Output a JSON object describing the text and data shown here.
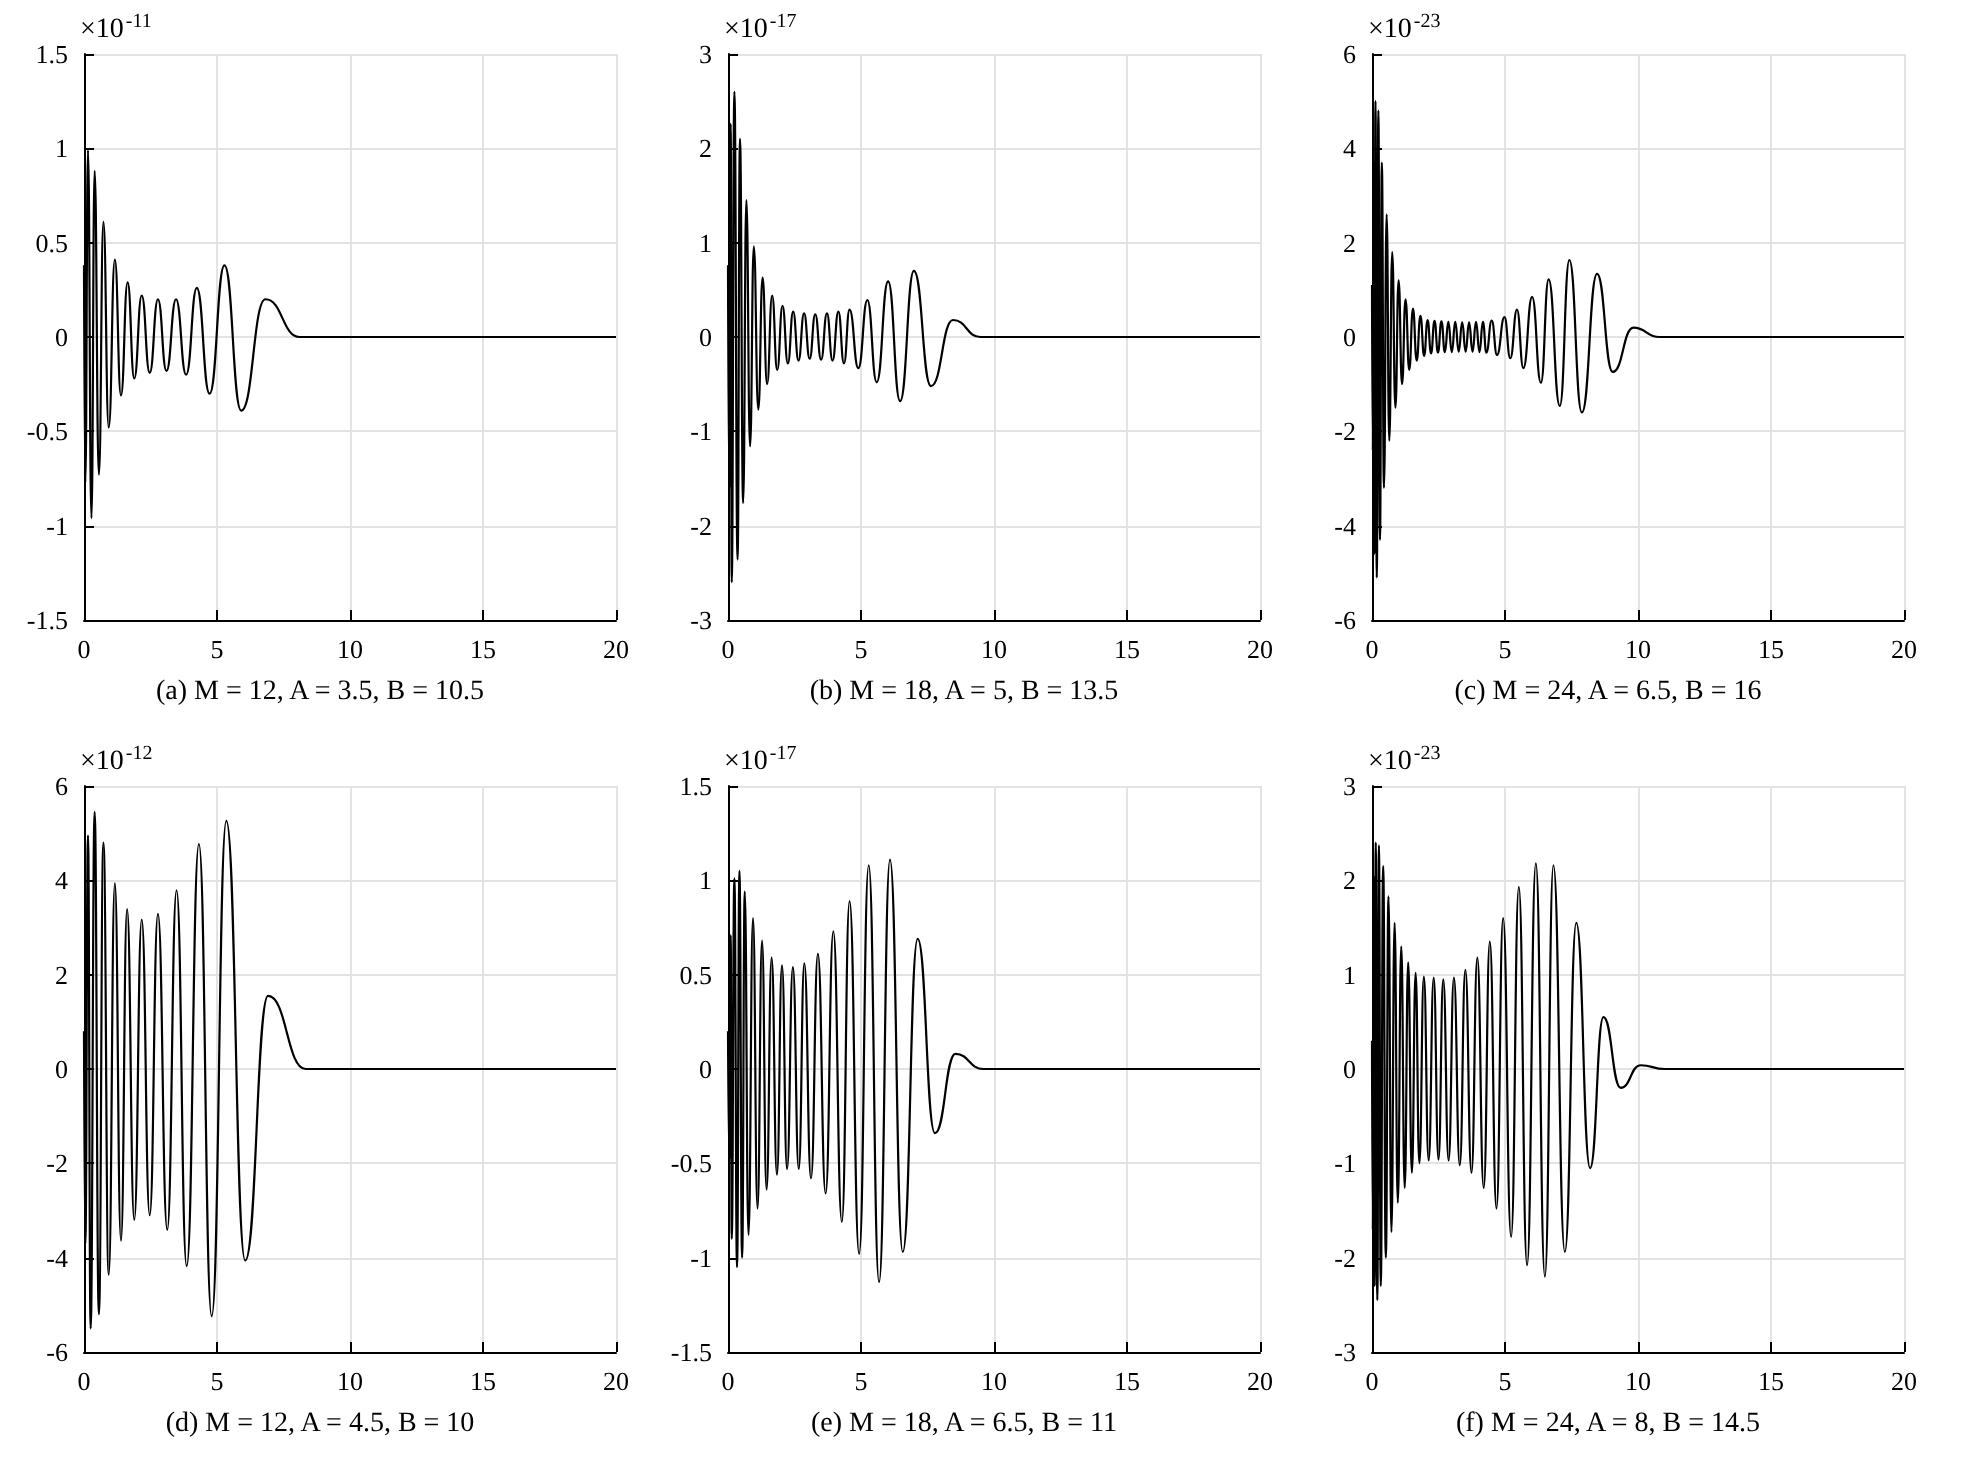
{
  "chart_data": [
    {
      "type": "line",
      "title": "(a) M = 12, A = 3.5, B = 10.5",
      "annotations": [
        "×10$^{-11}$"
      ],
      "xlim": [
        0,
        20
      ],
      "xticks": [
        0,
        5,
        10,
        15,
        20
      ],
      "ylim": [
        -1.5,
        1.5
      ],
      "yticks": [
        -1.5,
        -1,
        -0.5,
        0,
        0.5,
        1,
        1.5
      ],
      "grid": true,
      "series": [
        {
          "color": "#000000",
          "x": [
            0,
            0.05,
            0.15,
            0.28,
            0.4,
            0.56,
            0.73,
            0.93,
            1.16,
            1.39,
            1.64,
            1.89,
            2.17,
            2.47,
            2.78,
            3.1,
            3.46,
            3.84,
            4.24,
            4.72,
            5.28,
            5.91,
            6.82,
            8.1,
            20
          ],
          "values": [
            0.38,
            -0.77,
            0.99,
            -0.96,
            0.88,
            -0.73,
            0.61,
            -0.48,
            0.41,
            -0.31,
            0.29,
            -0.22,
            0.22,
            -0.19,
            0.2,
            -0.18,
            0.2,
            -0.2,
            0.26,
            -0.3,
            0.38,
            -0.39,
            0.2,
            0,
            0
          ]
        }
      ]
    },
    {
      "type": "line",
      "title": "(b) M = 18, A = 5, B = 13.5",
      "annotations": [
        "×10$^{-17}$"
      ],
      "xlim": [
        0,
        20
      ],
      "xticks": [
        0,
        5,
        10,
        15,
        20
      ],
      "ylim": [
        -3,
        3
      ],
      "yticks": [
        -3,
        -2,
        -1,
        0,
        1,
        2,
        3
      ],
      "grid": true,
      "series": [
        {
          "color": "#000000",
          "x": [
            0,
            0.05,
            0.1,
            0.14,
            0.24,
            0.36,
            0.45,
            0.57,
            0.69,
            0.83,
            0.97,
            1.14,
            1.3,
            1.47,
            1.66,
            1.85,
            2.05,
            2.25,
            2.45,
            2.65,
            2.86,
            3.07,
            3.28,
            3.5,
            3.72,
            3.93,
            4.15,
            4.36,
            4.57,
            4.9,
            5.24,
            5.59,
            6.02,
            6.47,
            6.99,
            7.63,
            8.46,
            9.48,
            20
          ],
          "values": [
            0.76,
            -1.6,
            2.26,
            -2.6,
            2.6,
            -2.36,
            2.1,
            -1.76,
            1.45,
            -1.16,
            0.96,
            -0.77,
            0.63,
            -0.5,
            0.44,
            -0.35,
            0.33,
            -0.28,
            0.27,
            -0.25,
            0.25,
            -0.23,
            0.24,
            -0.24,
            0.25,
            -0.25,
            0.27,
            -0.28,
            0.29,
            -0.33,
            0.39,
            -0.48,
            0.59,
            -0.68,
            0.7,
            -0.52,
            0.18,
            0,
            0
          ]
        }
      ]
    },
    {
      "type": "line",
      "title": "(c) M = 24, A = 6.5, B = 16",
      "annotations": [
        "×10$^{-23}$"
      ],
      "xlim": [
        0,
        20
      ],
      "xticks": [
        0,
        5,
        10,
        15,
        20
      ],
      "ylim": [
        -6,
        6
      ],
      "yticks": [
        -6,
        -4,
        -2,
        0,
        2,
        4,
        6
      ],
      "grid": true,
      "series": [
        {
          "color": "#000000",
          "x": [
            0,
            0.03,
            0.06,
            0.09,
            0.13,
            0.18,
            0.24,
            0.3,
            0.37,
            0.45,
            0.55,
            0.65,
            0.76,
            0.88,
            1.0,
            1.13,
            1.26,
            1.4,
            1.54,
            1.68,
            1.82,
            1.96,
            2.09,
            2.22,
            2.35,
            2.48,
            2.61,
            2.74,
            2.87,
            3.0,
            3.13,
            3.26,
            3.39,
            3.52,
            3.65,
            3.78,
            3.91,
            4.04,
            4.17,
            4.3,
            4.5,
            4.7,
            4.98,
            5.2,
            5.45,
            5.69,
            6.02,
            6.35,
            6.64,
            7.06,
            7.42,
            7.89,
            8.46,
            9.05,
            9.83,
            10.8,
            20
          ],
          "values": [
            1.1,
            -2.4,
            3.7,
            -4.6,
            5.0,
            -5.1,
            4.8,
            -4.3,
            3.7,
            -3.2,
            2.6,
            -2.2,
            1.8,
            -1.5,
            1.2,
            -1.0,
            0.8,
            -0.7,
            0.6,
            -0.5,
            0.45,
            -0.4,
            0.36,
            -0.35,
            0.34,
            -0.33,
            0.33,
            -0.32,
            0.32,
            -0.32,
            0.32,
            -0.31,
            0.31,
            -0.31,
            0.31,
            -0.31,
            0.32,
            -0.32,
            0.32,
            -0.33,
            0.35,
            -0.38,
            0.42,
            -0.45,
            0.58,
            -0.66,
            0.85,
            -0.97,
            1.22,
            -1.46,
            1.63,
            -1.6,
            1.34,
            -0.74,
            0.2,
            0,
            0
          ]
        }
      ]
    },
    {
      "type": "line",
      "title": "(d) M = 12, A = 4.5, B = 10",
      "annotations": [
        "×10$^{-12}$"
      ],
      "xlim": [
        0,
        20
      ],
      "xticks": [
        0,
        5,
        10,
        15,
        20
      ],
      "ylim": [
        -6,
        6
      ],
      "yticks": [
        -6,
        -4,
        -2,
        0,
        2,
        4,
        6
      ],
      "grid": true,
      "series": [
        {
          "color": "#000000",
          "x": [
            0,
            0.05,
            0.15,
            0.25,
            0.4,
            0.56,
            0.73,
            0.93,
            1.16,
            1.39,
            1.62,
            1.89,
            2.17,
            2.47,
            2.78,
            3.13,
            3.48,
            3.86,
            4.32,
            4.8,
            5.35,
            6.06,
            6.92,
            8.33,
            20
          ],
          "values": [
            0.8,
            -3.7,
            4.95,
            -5.5,
            5.45,
            -5.2,
            4.8,
            -4.36,
            3.94,
            -3.64,
            3.39,
            -3.2,
            3.17,
            -3.1,
            3.29,
            -3.41,
            3.79,
            -4.18,
            4.77,
            -5.24,
            5.26,
            -4.06,
            1.55,
            0,
            0
          ]
        }
      ]
    },
    {
      "type": "line",
      "title": "(e) M = 18, A = 6.5, B = 11",
      "annotations": [
        "×10$^{-17}$"
      ],
      "xlim": [
        0,
        20
      ],
      "xticks": [
        0,
        5,
        10,
        15,
        20
      ],
      "ylim": [
        -1.5,
        1.5
      ],
      "yticks": [
        -1.5,
        -1,
        -0.5,
        0,
        0.5,
        1,
        1.5
      ],
      "grid": true,
      "series": [
        {
          "color": "#000000",
          "x": [
            0,
            0.05,
            0.1,
            0.14,
            0.24,
            0.34,
            0.43,
            0.53,
            0.63,
            0.77,
            0.94,
            1.11,
            1.28,
            1.45,
            1.64,
            1.84,
            2.03,
            2.22,
            2.44,
            2.66,
            2.87,
            3.12,
            3.38,
            3.67,
            3.96,
            4.28,
            4.57,
            4.93,
            5.29,
            5.68,
            6.09,
            6.57,
            7.13,
            7.78,
            8.55,
            9.59,
            20
          ],
          "values": [
            0.2,
            -0.48,
            0.71,
            -0.9,
            1.01,
            -1.05,
            1.05,
            -1.0,
            0.94,
            -0.88,
            0.8,
            -0.74,
            0.68,
            -0.64,
            0.59,
            -0.56,
            0.55,
            -0.53,
            0.54,
            -0.53,
            0.56,
            -0.58,
            0.61,
            -0.66,
            0.73,
            -0.81,
            0.89,
            -0.98,
            1.08,
            -1.13,
            1.11,
            -0.97,
            0.69,
            -0.34,
            0.08,
            0,
            0
          ]
        }
      ]
    },
    {
      "type": "line",
      "title": "(f) M = 24, A = 8, B = 14.5",
      "annotations": [
        "×10$^{-23}$"
      ],
      "xlim": [
        0,
        20
      ],
      "xticks": [
        0,
        5,
        10,
        15,
        20
      ],
      "ylim": [
        -3,
        3
      ],
      "yticks": [
        -3,
        -2,
        -1,
        0,
        1,
        2,
        3
      ],
      "grid": true,
      "series": [
        {
          "color": "#000000",
          "x": [
            0,
            0.03,
            0.06,
            0.1,
            0.14,
            0.2,
            0.26,
            0.33,
            0.42,
            0.52,
            0.62,
            0.73,
            0.85,
            0.97,
            1.1,
            1.23,
            1.36,
            1.5,
            1.64,
            1.78,
            1.95,
            2.13,
            2.32,
            2.5,
            2.68,
            2.88,
            3.08,
            3.3,
            3.51,
            3.74,
            3.96,
            4.2,
            4.43,
            4.68,
            4.93,
            5.23,
            5.52,
            5.83,
            6.16,
            6.5,
            6.82,
            7.25,
            7.68,
            8.2,
            8.7,
            9.35,
            10.1,
            11,
            20
          ],
          "values": [
            0.3,
            -1.7,
            2.05,
            -2.3,
            2.4,
            -2.45,
            2.37,
            -2.3,
            2.15,
            -2.0,
            1.83,
            -1.73,
            1.55,
            -1.42,
            1.3,
            -1.26,
            1.13,
            -1.1,
            1.02,
            -1.0,
            0.98,
            -0.97,
            0.97,
            -0.96,
            0.95,
            -0.97,
            0.97,
            -1.02,
            1.05,
            -1.1,
            1.18,
            -1.26,
            1.35,
            -1.48,
            1.6,
            -1.78,
            1.93,
            -2.08,
            2.18,
            -2.2,
            2.16,
            -1.94,
            1.55,
            -1.05,
            0.55,
            -0.2,
            0.04,
            0,
            0
          ]
        }
      ]
    }
  ]
}
